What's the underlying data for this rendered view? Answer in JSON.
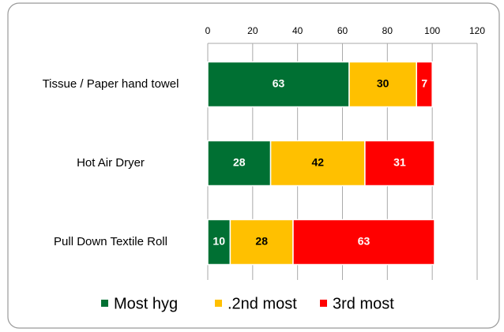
{
  "chart_data": {
    "type": "bar",
    "orientation": "horizontal",
    "stacked": true,
    "categories": [
      "Tissue / Paper hand towel",
      "Hot Air Dryer",
      "Pull Down Textile Roll"
    ],
    "series": [
      {
        "name": "Most hyg",
        "color": "#007033",
        "label_color": "#ffffff",
        "values": [
          63,
          28,
          10
        ]
      },
      {
        "name": ".2nd most",
        "color": "#ffc000",
        "label_color": "#000000",
        "values": [
          30,
          42,
          28
        ]
      },
      {
        "name": "3rd most",
        "color": "#ff0000",
        "label_color": "#ffffff",
        "values": [
          7,
          31,
          63
        ]
      }
    ],
    "xlim": [
      0,
      120
    ],
    "xticks": [
      0,
      20,
      40,
      60,
      80,
      100,
      120
    ],
    "grid": true,
    "legend": "bottom"
  }
}
